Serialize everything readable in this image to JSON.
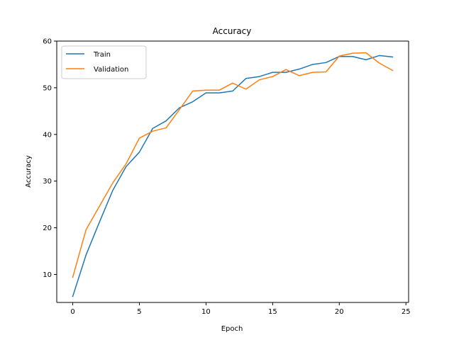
{
  "chart_data": {
    "type": "line",
    "title": "Accuracy",
    "xlabel": "Epoch",
    "ylabel": "Accuracy",
    "xlim": [
      -1.2,
      25.2
    ],
    "ylim": [
      4.0,
      60.0
    ],
    "xticks": [
      0,
      5,
      10,
      15,
      20,
      25
    ],
    "yticks": [
      10,
      20,
      30,
      40,
      50,
      60
    ],
    "grid": false,
    "legend_position": "top-left",
    "x": [
      0,
      1,
      2,
      3,
      4,
      5,
      6,
      7,
      8,
      9,
      10,
      11,
      12,
      13,
      14,
      15,
      16,
      17,
      18,
      19,
      20,
      21,
      22,
      23,
      24
    ],
    "series": [
      {
        "name": "Train",
        "color": "#1f77b4",
        "values": [
          5.3,
          14.2,
          21.2,
          28.0,
          33.1,
          36.2,
          41.3,
          42.9,
          45.7,
          47.0,
          48.9,
          48.9,
          49.3,
          52.0,
          52.4,
          53.3,
          53.3,
          54.0,
          55.0,
          55.4,
          56.7,
          56.7,
          56.0,
          56.9,
          56.6
        ]
      },
      {
        "name": "Validation",
        "color": "#ff7f0e",
        "values": [
          9.4,
          19.6,
          24.6,
          29.6,
          33.7,
          39.2,
          40.7,
          41.4,
          45.3,
          49.3,
          49.5,
          49.5,
          51.0,
          49.7,
          51.7,
          52.4,
          53.9,
          52.6,
          53.3,
          53.4,
          56.8,
          57.4,
          57.5,
          55.3,
          53.7
        ]
      }
    ]
  }
}
